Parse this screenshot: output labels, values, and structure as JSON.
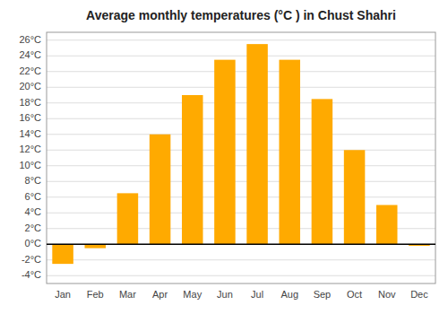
{
  "chart_data": {
    "type": "bar",
    "title": "Average monthly temperatures (°C ) in Chust Shahri",
    "categories": [
      "Jan",
      "Feb",
      "Mar",
      "Apr",
      "May",
      "Jun",
      "Jul",
      "Aug",
      "Sep",
      "Oct",
      "Nov",
      "Dec"
    ],
    "values": [
      -2.5,
      -0.5,
      6.5,
      14.0,
      19.0,
      23.5,
      25.5,
      23.5,
      18.5,
      12.0,
      5.0,
      -0.2
    ],
    "color": "#FFAA00",
    "ylim": [
      -5,
      27
    ],
    "yticks": [
      {
        "value": -4,
        "label": "-4°C"
      },
      {
        "value": -2,
        "label": "-2°C"
      },
      {
        "value": 0,
        "label": "0°C"
      },
      {
        "value": 2,
        "label": "2°C"
      },
      {
        "value": 4,
        "label": "4°C"
      },
      {
        "value": 6,
        "label": "6°C"
      },
      {
        "value": 8,
        "label": "8°C"
      },
      {
        "value": 10,
        "label": "10°C"
      },
      {
        "value": 12,
        "label": "12°C"
      },
      {
        "value": 14,
        "label": "14°C"
      },
      {
        "value": 16,
        "label": "16°C"
      },
      {
        "value": 18,
        "label": "18°C"
      },
      {
        "value": 20,
        "label": "20°C"
      },
      {
        "value": 22,
        "label": "22°C"
      },
      {
        "value": 24,
        "label": "24°C"
      },
      {
        "value": 26,
        "label": "26°C"
      }
    ],
    "grid": true
  }
}
